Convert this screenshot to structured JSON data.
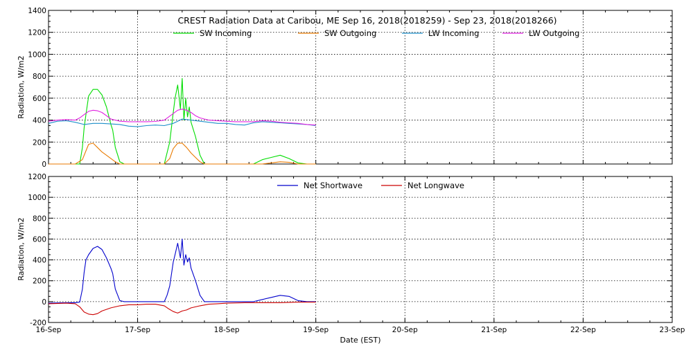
{
  "chart_data": [
    {
      "type": "line",
      "title": "CREST Radiation Data at Caribou, ME   Sep 16, 2018(2018259) - Sep 23, 2018(2018266)",
      "xlabel": "",
      "ylabel": "Radiation, W/m2",
      "xlim": [
        0,
        7
      ],
      "ylim": [
        0,
        1400
      ],
      "yticks": [
        "0",
        "200",
        "400",
        "600",
        "800",
        "1000",
        "1200",
        "1400"
      ],
      "grid": true,
      "legend": "top",
      "series": [
        {
          "name": "SW Incoming",
          "color": "#00dd00",
          "x": [
            0.0,
            0.1,
            0.2,
            0.3,
            0.35,
            0.38,
            0.4,
            0.42,
            0.45,
            0.5,
            0.55,
            0.6,
            0.65,
            0.7,
            0.72,
            0.75,
            0.8,
            0.85,
            0.9,
            1.0,
            1.2,
            1.3,
            1.33,
            1.36,
            1.4,
            1.42,
            1.45,
            1.48,
            1.5,
            1.52,
            1.54,
            1.56,
            1.58,
            1.6,
            1.65,
            1.7,
            1.75,
            1.8,
            1.9,
            2.0,
            2.1,
            2.2,
            2.3,
            2.4,
            2.5,
            2.6,
            2.7,
            2.8,
            2.9,
            3.0
          ],
          "y": [
            0,
            0,
            0,
            0,
            0,
            150,
            330,
            450,
            620,
            680,
            680,
            630,
            520,
            360,
            310,
            150,
            20,
            0,
            0,
            0,
            0,
            0,
            100,
            200,
            470,
            600,
            720,
            500,
            780,
            400,
            600,
            430,
            520,
            380,
            250,
            80,
            0,
            0,
            0,
            0,
            0,
            0,
            0,
            40,
            60,
            80,
            50,
            10,
            0,
            0
          ]
        },
        {
          "name": "SW Outgoing",
          "color": "#e87a00",
          "x": [
            0.0,
            0.3,
            0.38,
            0.42,
            0.45,
            0.5,
            0.55,
            0.6,
            0.65,
            0.7,
            0.75,
            0.8,
            0.85,
            1.0,
            1.3,
            1.36,
            1.4,
            1.45,
            1.5,
            1.55,
            1.6,
            1.65,
            1.7,
            1.75,
            1.8,
            2.0,
            2.2,
            2.4,
            2.5,
            2.6,
            2.7,
            2.8,
            2.9,
            3.0
          ],
          "y": [
            0,
            0,
            40,
            120,
            180,
            190,
            150,
            110,
            80,
            50,
            20,
            0,
            0,
            0,
            0,
            50,
            140,
            190,
            190,
            150,
            100,
            60,
            20,
            0,
            0,
            0,
            0,
            0,
            10,
            20,
            15,
            0,
            0,
            0
          ]
        },
        {
          "name": "LW Incoming",
          "color": "#1d8fc9",
          "x": [
            0.0,
            0.1,
            0.2,
            0.3,
            0.4,
            0.5,
            0.6,
            0.7,
            0.8,
            0.9,
            1.0,
            1.1,
            1.2,
            1.3,
            1.4,
            1.5,
            1.6,
            1.7,
            1.8,
            1.9,
            2.0,
            2.1,
            2.2,
            2.3,
            2.4,
            2.5,
            2.6,
            2.7,
            2.8,
            2.9,
            3.0
          ],
          "y": [
            370,
            390,
            395,
            380,
            360,
            370,
            370,
            365,
            360,
            345,
            340,
            350,
            355,
            350,
            370,
            410,
            400,
            390,
            380,
            370,
            370,
            360,
            355,
            375,
            385,
            380,
            375,
            370,
            365,
            360,
            350
          ]
        },
        {
          "name": "LW Outgoing",
          "color": "#e020e0",
          "x": [
            0.0,
            0.1,
            0.2,
            0.3,
            0.35,
            0.4,
            0.45,
            0.5,
            0.55,
            0.6,
            0.65,
            0.7,
            0.8,
            0.9,
            1.0,
            1.1,
            1.2,
            1.3,
            1.35,
            1.4,
            1.45,
            1.5,
            1.55,
            1.6,
            1.65,
            1.7,
            1.8,
            1.9,
            2.0,
            2.1,
            2.2,
            2.3,
            2.4,
            2.5,
            2.6,
            2.7,
            2.8,
            2.9,
            3.0
          ],
          "y": [
            390,
            400,
            405,
            400,
            420,
            450,
            480,
            490,
            485,
            470,
            440,
            410,
            390,
            385,
            385,
            385,
            388,
            400,
            430,
            460,
            490,
            500,
            490,
            470,
            440,
            420,
            400,
            395,
            390,
            385,
            385,
            385,
            395,
            390,
            380,
            375,
            370,
            360,
            355
          ]
        }
      ]
    },
    {
      "type": "line",
      "title": "",
      "xlabel": "Date (EST)",
      "ylabel": "Radiation, W/m2",
      "xlim": [
        0,
        7
      ],
      "ylim": [
        -200,
        1200
      ],
      "yticks": [
        "-200",
        "0",
        "200",
        "400",
        "600",
        "800",
        "1000",
        "1200"
      ],
      "xticks": [
        "16-Sep",
        "17-Sep",
        "18-Sep",
        "19-Sep",
        "20-Sep",
        "21-Sep",
        "22-Sep",
        "23-Sep"
      ],
      "grid": true,
      "legend": "top",
      "series": [
        {
          "name": "Net Shortwave",
          "color": "#0000cc",
          "x": [
            0.0,
            0.2,
            0.3,
            0.35,
            0.38,
            0.4,
            0.42,
            0.45,
            0.5,
            0.55,
            0.6,
            0.65,
            0.7,
            0.72,
            0.75,
            0.8,
            0.85,
            1.0,
            1.2,
            1.3,
            1.33,
            1.36,
            1.4,
            1.42,
            1.45,
            1.48,
            1.5,
            1.52,
            1.54,
            1.56,
            1.58,
            1.6,
            1.65,
            1.7,
            1.75,
            1.8,
            2.0,
            2.2,
            2.3,
            2.4,
            2.5,
            2.6,
            2.7,
            2.8,
            2.9,
            3.0
          ],
          "y": [
            -15,
            -10,
            -10,
            -5,
            120,
            280,
            400,
            450,
            510,
            530,
            500,
            420,
            320,
            270,
            120,
            10,
            0,
            0,
            0,
            0,
            60,
            150,
            380,
            450,
            560,
            420,
            600,
            350,
            450,
            380,
            420,
            320,
            200,
            60,
            0,
            0,
            0,
            0,
            0,
            20,
            40,
            60,
            50,
            10,
            0,
            0
          ]
        },
        {
          "name": "Net Longwave",
          "color": "#cc0000",
          "x": [
            0.0,
            0.2,
            0.3,
            0.35,
            0.4,
            0.45,
            0.5,
            0.55,
            0.6,
            0.7,
            0.8,
            0.9,
            1.0,
            1.1,
            1.2,
            1.3,
            1.35,
            1.4,
            1.45,
            1.5,
            1.55,
            1.6,
            1.7,
            1.8,
            1.9,
            2.0,
            2.2,
            2.4,
            2.6,
            2.8,
            3.0
          ],
          "y": [
            -20,
            -15,
            -20,
            -50,
            -100,
            -120,
            -125,
            -115,
            -90,
            -60,
            -40,
            -30,
            -30,
            -25,
            -25,
            -40,
            -70,
            -95,
            -110,
            -90,
            -80,
            -60,
            -40,
            -25,
            -20,
            -15,
            -10,
            -10,
            -10,
            -5,
            -5
          ]
        }
      ]
    }
  ]
}
